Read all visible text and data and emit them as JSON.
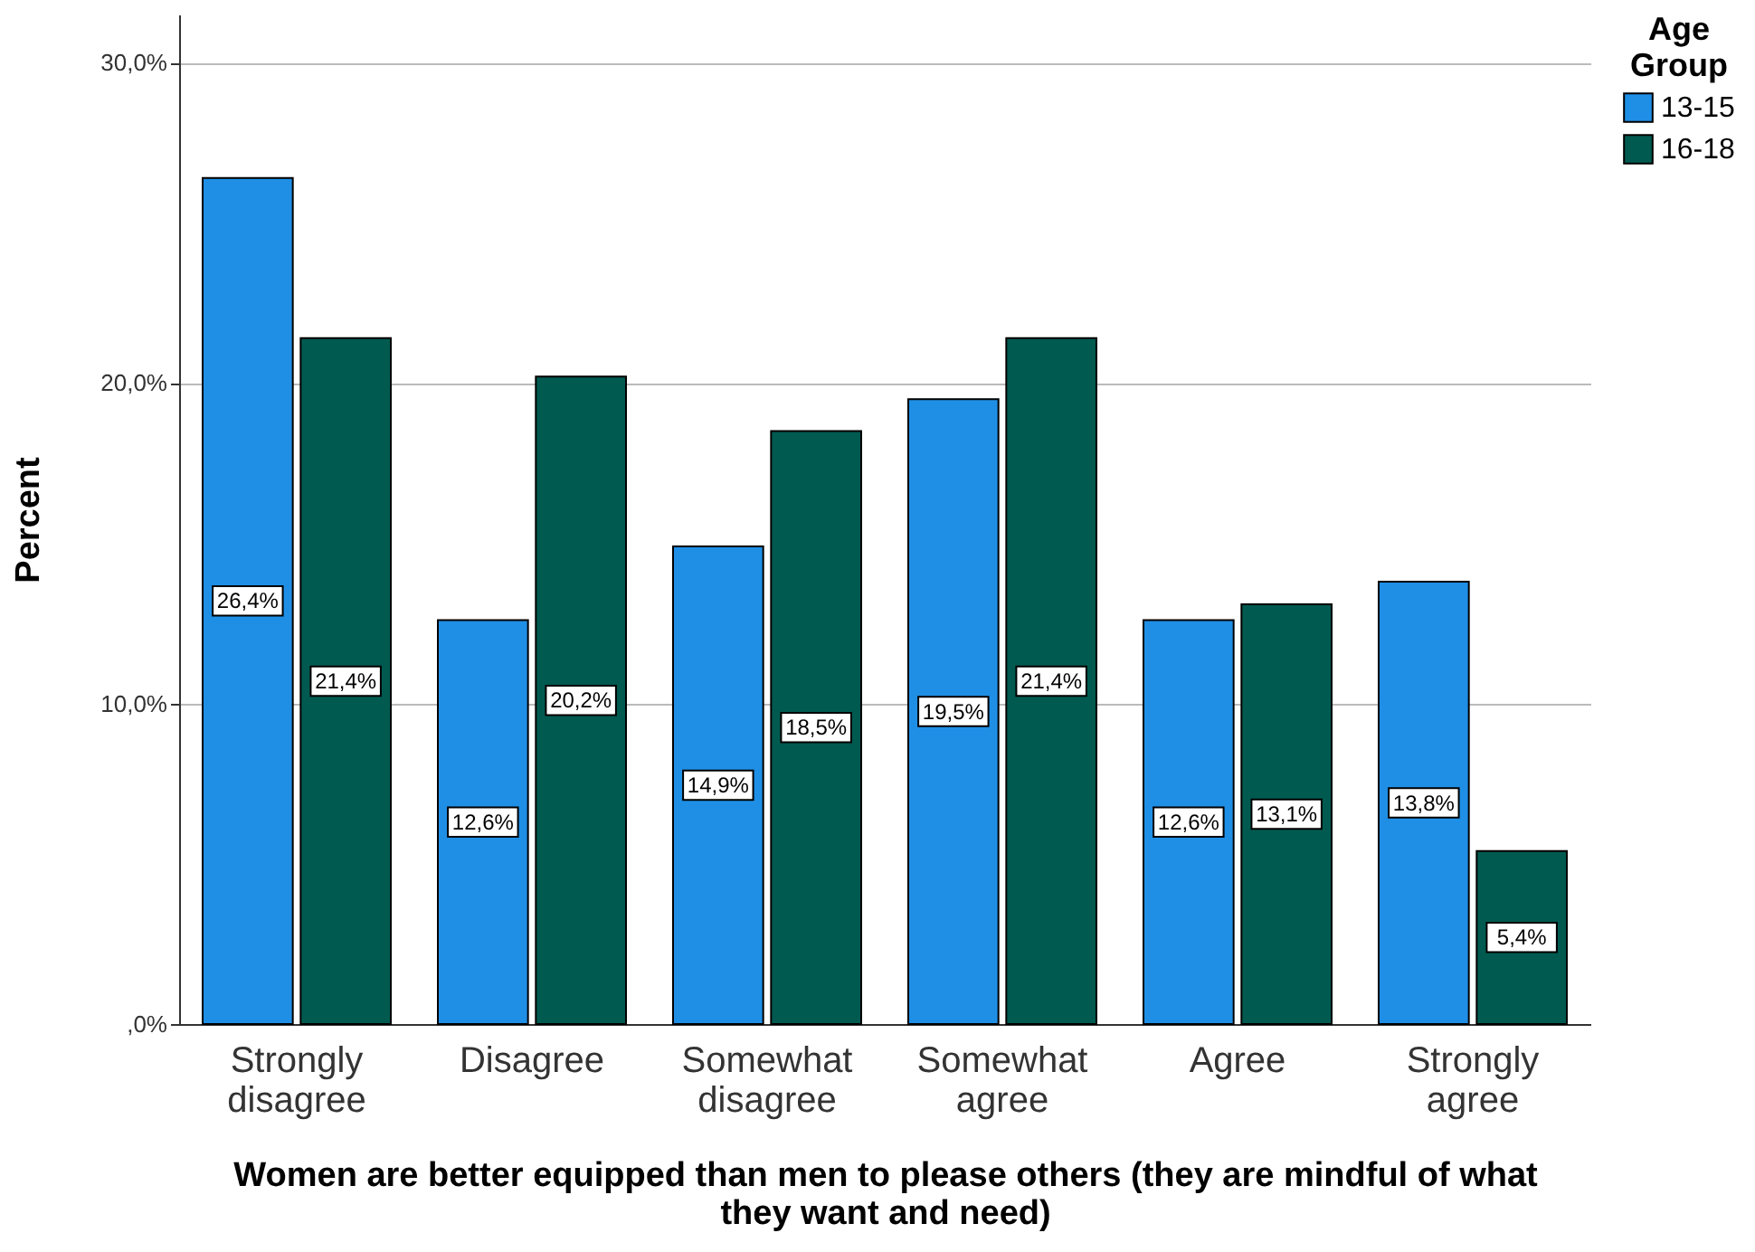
{
  "chart_data": {
    "type": "bar",
    "xlabel": "Women are better equipped than men to please others (they are mindful of what they want and need)",
    "ylabel": "Percent",
    "legend_title": "Age Group",
    "categories": [
      "Strongly disagree",
      "Disagree",
      "Somewhat disagree",
      "Somewhat agree",
      "Agree",
      "Strongly agree"
    ],
    "series": [
      {
        "name": "13-15",
        "color": "#1f8fe6",
        "values": [
          26.4,
          12.6,
          14.9,
          19.5,
          12.6,
          13.8
        ],
        "value_labels": [
          "26,4%",
          "12,6%",
          "14,9%",
          "19,5%",
          "12,6%",
          "13,8%"
        ]
      },
      {
        "name": "16-18",
        "color": "#005a50",
        "values": [
          21.4,
          20.2,
          18.5,
          21.4,
          13.1,
          5.4
        ],
        "value_labels": [
          "21,4%",
          "20,2%",
          "18,5%",
          "21,4%",
          "13,1%",
          "5,4%"
        ]
      }
    ],
    "ylim": [
      0,
      31.5
    ],
    "yticks": [
      {
        "value": 0,
        "label": ",0%"
      },
      {
        "value": 10,
        "label": "10,0%"
      },
      {
        "value": 20,
        "label": "20,0%"
      },
      {
        "value": 30,
        "label": "30,0%"
      }
    ],
    "grid": "y",
    "legend": "top right"
  }
}
